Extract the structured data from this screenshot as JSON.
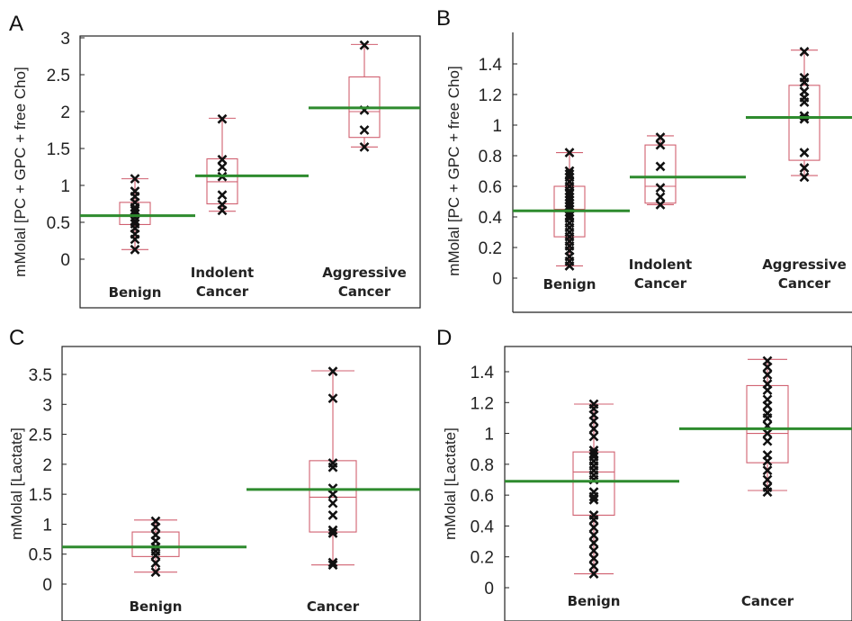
{
  "chart_data": [
    {
      "panel": "A",
      "type": "box",
      "ylabel": "mMolal [PC + GPC + free Cho]",
      "yticks": [
        "0",
        "0.5",
        "1",
        "1.5",
        "2",
        "2.5",
        "3"
      ],
      "ylim": [
        -0.3,
        3.0
      ],
      "categories": [
        [
          "Benign"
        ],
        [
          "Indolent",
          "Cancer"
        ],
        [
          "Aggressive",
          "Cancer"
        ]
      ],
      "boxes": [
        {
          "min": 0.13,
          "q1": 0.47,
          "median": 0.6,
          "q3": 0.77,
          "max": 1.09,
          "points": [
            0.13,
            0.27,
            0.34,
            0.42,
            0.48,
            0.52,
            0.57,
            0.62,
            0.66,
            0.7,
            0.77,
            0.85,
            0.92,
            1.09
          ]
        },
        {
          "min": 0.65,
          "q1": 0.75,
          "median": 1.05,
          "q3": 1.36,
          "max": 1.91,
          "points": [
            0.66,
            0.74,
            0.87,
            1.12,
            1.25,
            1.35,
            1.9
          ]
        },
        {
          "min": 1.52,
          "q1": 1.65,
          "median": 2.0,
          "q3": 2.47,
          "max": 2.91,
          "points": [
            1.52,
            1.75,
            2.02,
            2.9
          ]
        }
      ],
      "means": [
        0.59,
        1.13,
        2.05
      ]
    },
    {
      "panel": "B",
      "type": "box",
      "ylabel": "mMolal [PC + GPC + free Cho]",
      "yticks": [
        "0",
        "0.2",
        "0.4",
        "0.6",
        "0.8",
        "1",
        "1.2",
        "1.4"
      ],
      "ylim": [
        -0.1,
        1.6
      ],
      "categories": [
        [
          "Benign"
        ],
        [
          "Indolent",
          "Cancer"
        ],
        [
          "Aggressive",
          "Cancer"
        ]
      ],
      "boxes": [
        {
          "min": 0.08,
          "q1": 0.27,
          "median": 0.45,
          "q3": 0.6,
          "max": 0.82,
          "points": [
            0.08,
            0.11,
            0.14,
            0.18,
            0.21,
            0.24,
            0.27,
            0.3,
            0.33,
            0.36,
            0.39,
            0.41,
            0.43,
            0.45,
            0.47,
            0.49,
            0.51,
            0.53,
            0.55,
            0.57,
            0.6,
            0.63,
            0.66,
            0.68,
            0.7,
            0.82
          ]
        },
        {
          "min": 0.48,
          "q1": 0.49,
          "median": 0.6,
          "q3": 0.87,
          "max": 0.93,
          "points": [
            0.48,
            0.53,
            0.59,
            0.73,
            0.87,
            0.92
          ]
        },
        {
          "min": 0.67,
          "q1": 0.77,
          "median": 1.05,
          "q3": 1.26,
          "max": 1.49,
          "points": [
            0.66,
            0.72,
            0.82,
            1.04,
            1.06,
            1.15,
            1.18,
            1.22,
            1.28,
            1.31,
            1.48
          ]
        }
      ],
      "means": [
        0.44,
        0.66,
        1.05
      ]
    },
    {
      "panel": "C",
      "type": "box",
      "ylabel": "mMolal [Lactate]",
      "yticks": [
        "0",
        "0.5",
        "1",
        "1.5",
        "2",
        "2.5",
        "3",
        "3.5"
      ],
      "ylim": [
        -0.3,
        3.8
      ],
      "categories": [
        [
          "Benign"
        ],
        [
          "Cancer"
        ]
      ],
      "boxes": [
        {
          "min": 0.2,
          "q1": 0.46,
          "median": 0.62,
          "q3": 0.87,
          "max": 1.07,
          "points": [
            0.2,
            0.35,
            0.48,
            0.55,
            0.62,
            0.72,
            0.82,
            0.95,
            1.05
          ]
        },
        {
          "min": 0.32,
          "q1": 0.87,
          "median": 1.45,
          "q3": 2.06,
          "max": 3.56,
          "points": [
            0.32,
            0.36,
            0.85,
            0.9,
            1.15,
            1.35,
            1.5,
            1.6,
            1.95,
            2.02,
            3.1,
            3.55
          ]
        }
      ],
      "means": [
        0.62,
        1.58
      ]
    },
    {
      "panel": "D",
      "type": "box",
      "ylabel": "mMolal [Lactate]",
      "yticks": [
        "0",
        "0.2",
        "0.4",
        "0.6",
        "0.8",
        "1",
        "1.2",
        "1.4"
      ],
      "ylim": [
        -0.1,
        1.6
      ],
      "categories": [
        [
          "Benign"
        ],
        [
          "Cancer"
        ]
      ],
      "boxes": [
        {
          "min": 0.09,
          "q1": 0.47,
          "median": 0.75,
          "q3": 0.88,
          "max": 1.19,
          "points": [
            0.09,
            0.14,
            0.19,
            0.24,
            0.29,
            0.34,
            0.39,
            0.44,
            0.47,
            0.57,
            0.59,
            0.62,
            0.7,
            0.73,
            0.76,
            0.79,
            0.82,
            0.85,
            0.87,
            0.89,
            0.98,
            1.03,
            1.08,
            1.12,
            1.16,
            1.19
          ]
        },
        {
          "min": 0.63,
          "q1": 0.81,
          "median": 1.0,
          "q3": 1.31,
          "max": 1.48,
          "points": [
            0.62,
            0.65,
            0.7,
            0.76,
            0.82,
            0.86,
            0.95,
            1.0,
            1.05,
            1.1,
            1.13,
            1.18,
            1.22,
            1.28,
            1.32,
            1.38,
            1.43,
            1.47
          ]
        }
      ],
      "means": [
        0.69,
        1.03
      ]
    }
  ]
}
